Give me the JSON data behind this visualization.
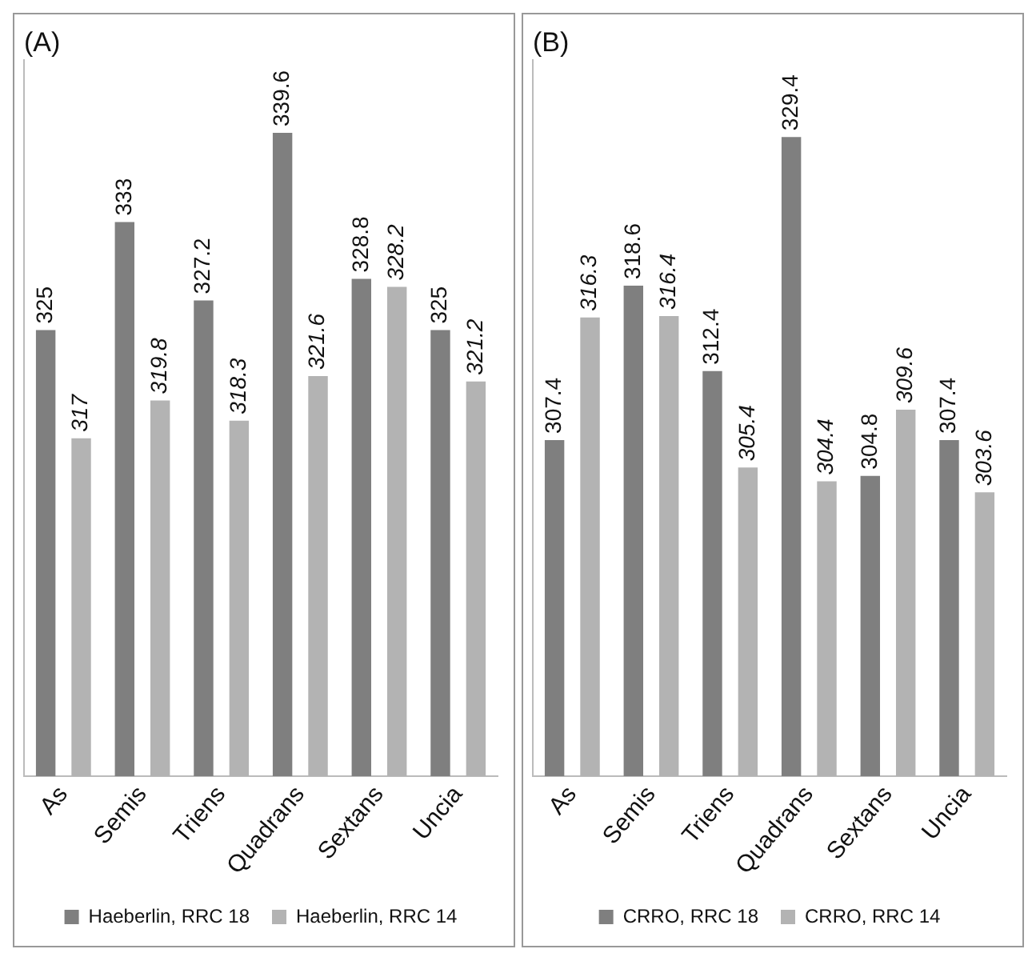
{
  "chart_data": [
    {
      "type": "bar",
      "title": "(A)",
      "categories": [
        "As",
        "Semis",
        "Triens",
        "Quadrans",
        "Sextans",
        "Uncia"
      ],
      "ylim": [
        292,
        345
      ],
      "tick_labels": "x",
      "data_labels": true,
      "legend": "bottom",
      "grid": false,
      "series": [
        {
          "name": "Haeberlin, RRC 18",
          "color": "#7f7f7f",
          "values": [
            325,
            333,
            327.2,
            339.6,
            328.8,
            325
          ]
        },
        {
          "name": "Haeberlin, RRC 14",
          "color": "#b3b3b3",
          "values": [
            317,
            319.8,
            318.3,
            321.6,
            328.2,
            321.2
          ]
        }
      ]
    },
    {
      "type": "bar",
      "title": "(B)",
      "categories": [
        "As",
        "Semis",
        "Triens",
        "Quadrans",
        "Sextans",
        "Uncia"
      ],
      "ylim": [
        283,
        335
      ],
      "tick_labels": "x",
      "data_labels": true,
      "legend": "bottom",
      "grid": false,
      "series": [
        {
          "name": "CRRO, RRC 18",
          "color": "#7f7f7f",
          "values": [
            307.4,
            318.6,
            312.4,
            329.4,
            304.8,
            307.4
          ]
        },
        {
          "name": "CRRO, RRC 14",
          "color": "#b3b3b3",
          "values": [
            316.3,
            316.4,
            305.4,
            304.4,
            309.6,
            303.6
          ]
        }
      ]
    }
  ]
}
